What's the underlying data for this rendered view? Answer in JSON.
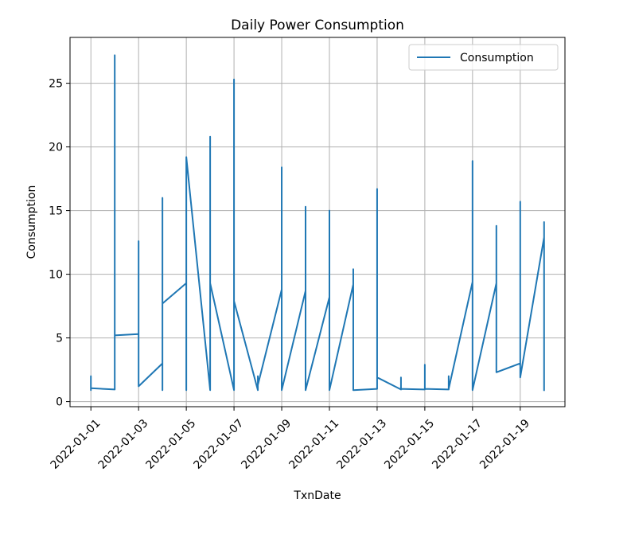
{
  "chart_data": {
    "type": "line",
    "title": "Daily Power Consumption",
    "xlabel": "TxnDate",
    "ylabel": "Consumption",
    "xlim": [
      "2021-12-31T03:00",
      "2022-01-20T21:00"
    ],
    "ylim": [
      -0.4,
      28.6
    ],
    "x_ticks": [
      "2022-01-01",
      "2022-01-03",
      "2022-01-05",
      "2022-01-07",
      "2022-01-09",
      "2022-01-11",
      "2022-01-13",
      "2022-01-15",
      "2022-01-17",
      "2022-01-19"
    ],
    "y_ticks": [
      0,
      5,
      10,
      15,
      20,
      25
    ],
    "grid": true,
    "legend_position": "top-right",
    "colors": {
      "series": "#1f77b4",
      "grid": "#b0b0b0",
      "axes": "#000000"
    },
    "series": [
      {
        "name": "Consumption",
        "x": [
          "2022-01-01",
          "2022-01-01",
          "2022-01-01",
          "2022-01-01",
          "2022-01-02",
          "2022-01-02",
          "2022-01-02",
          "2022-01-03",
          "2022-01-03",
          "2022-01-03",
          "2022-01-04",
          "2022-01-04",
          "2022-01-04",
          "2022-01-04",
          "2022-01-05",
          "2022-01-05",
          "2022-01-05",
          "2022-01-06",
          "2022-01-06",
          "2022-01-06",
          "2022-01-07",
          "2022-01-07",
          "2022-01-07",
          "2022-01-08",
          "2022-01-08",
          "2022-01-08",
          "2022-01-09",
          "2022-01-09",
          "2022-01-09",
          "2022-01-10",
          "2022-01-10",
          "2022-01-10",
          "2022-01-11",
          "2022-01-11",
          "2022-01-11",
          "2022-01-12",
          "2022-01-12",
          "2022-01-12",
          "2022-01-13",
          "2022-01-13",
          "2022-01-13",
          "2022-01-14",
          "2022-01-14",
          "2022-01-14",
          "2022-01-15",
          "2022-01-15",
          "2022-01-15",
          "2022-01-16",
          "2022-01-16",
          "2022-01-16",
          "2022-01-17",
          "2022-01-17",
          "2022-01-17",
          "2022-01-18",
          "2022-01-18",
          "2022-01-18",
          "2022-01-19",
          "2022-01-19",
          "2022-01-19",
          "2022-01-20",
          "2022-01-20",
          "2022-01-20"
        ],
        "y": [
          1.1,
          2.0,
          0.9,
          1.05,
          0.95,
          27.2,
          5.2,
          5.3,
          12.6,
          1.2,
          3.0,
          0.9,
          16.0,
          7.7,
          9.3,
          0.9,
          19.2,
          0.9,
          20.8,
          9.3,
          0.9,
          25.3,
          7.9,
          0.9,
          2.0,
          1.3,
          8.8,
          18.4,
          0.9,
          8.7,
          15.3,
          0.9,
          8.2,
          15.0,
          0.9,
          9.2,
          10.4,
          0.9,
          1.0,
          16.7,
          1.9,
          0.95,
          1.9,
          1.0,
          0.95,
          2.9,
          1.0,
          0.95,
          2.0,
          1.0,
          9.4,
          18.9,
          0.9,
          9.3,
          13.8,
          2.3,
          3.0,
          15.7,
          1.9,
          12.9,
          14.1,
          0.9
        ]
      }
    ]
  }
}
